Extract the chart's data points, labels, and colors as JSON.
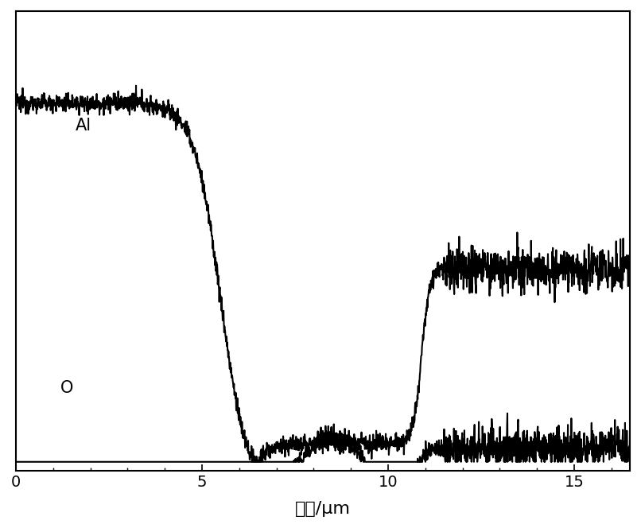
{
  "xlabel": "距离/μm",
  "xlabel_fontsize": 16,
  "xlim": [
    0,
    16.5
  ],
  "xticks": [
    0,
    5,
    10,
    15
  ],
  "line_color": "#000000",
  "line_width": 1.5,
  "label_Al": "Al",
  "label_O": "O",
  "label_fontsize": 15,
  "background_color": "#ffffff",
  "fig_width": 8.06,
  "fig_height": 6.64,
  "dpi": 100
}
